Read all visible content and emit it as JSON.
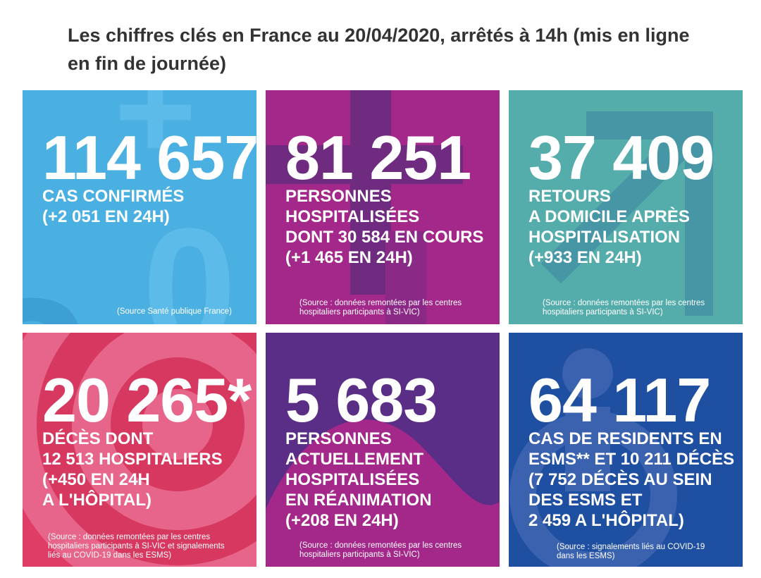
{
  "headline": "Les chiffres clés en France au 20/04/2020, arrêtés à 14h (mis en ligne en fin de journée)",
  "cards": [
    {
      "number": "114 657",
      "label": "CAS CONFIRMÉS\n(+2 051 EN 24H)",
      "source": "(Source Santé publique France)",
      "color": "#4ab0e2"
    },
    {
      "number": "81 251",
      "label": "PERSONNES\nHOSPITALISÉES\nDONT 30 584 EN COURS\n(+1 465 EN 24H)",
      "source": "(Source : données remontées par les centres\nhospitaliers participants à SI-VIC)",
      "color": "#a3288a"
    },
    {
      "number": "37 409",
      "label": "RETOURS\nA DOMICILE APRÈS\nHOSPITALISATION\n(+933 EN 24H)",
      "source": "(Source : données remontées par les centres\nhospitaliers participants à SI-VIC)",
      "color": "#55adab"
    },
    {
      "number": "20 265*",
      "label": "DÉCÈS DONT\n12 513 HOSPITALIERS\n(+450 EN 24H\nA L'HÔPITAL)",
      "source": "(Source : données remontées par les centres\nhospitaliers participants à SI-VIC et signalements\nliés au COVID-19 dans les ESMS)",
      "color": "#e03d66"
    },
    {
      "number": "5 683",
      "label": "PERSONNES\nACTUELLEMENT\nHOSPITALISÉES\nEN RÉANIMATION\n(+208 EN 24H)",
      "source": "(Source : données remontées par les centres\nhospitaliers participants à SI-VIC)",
      "color": "#5a2d86"
    },
    {
      "number": "64 117",
      "label": "CAS DE RESIDENTS EN\nESMS** ET 10 211 DÉCÈS\n(7 752 DÉCÈS AU SEIN\nDES ESMS ET\n2 459 A L'HÔPITAL)",
      "source": "(Source : signalements liés au COVID-19\ndans les ESMS)",
      "color": "#1f4fa0"
    }
  ]
}
